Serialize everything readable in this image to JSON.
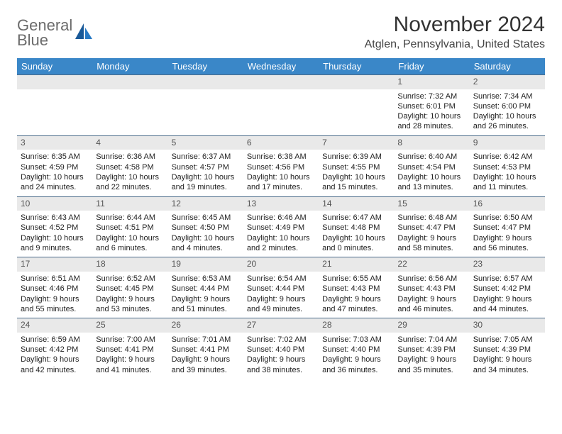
{
  "logo": {
    "line1": "General",
    "line2": "Blue",
    "gray_color": "#6b6b6b",
    "blue_color": "#2779c4",
    "icon_color": "#1a5a99"
  },
  "title": "November 2024",
  "location": "Atglen, Pennsylvania, United States",
  "header_bg": "#3a87c8",
  "header_fg": "#ffffff",
  "daynum_bg": "#e9e9e9",
  "cell_border": "#4a6b8a",
  "day_names": [
    "Sunday",
    "Monday",
    "Tuesday",
    "Wednesday",
    "Thursday",
    "Friday",
    "Saturday"
  ],
  "weeks": [
    [
      {
        "n": "",
        "lines": []
      },
      {
        "n": "",
        "lines": []
      },
      {
        "n": "",
        "lines": []
      },
      {
        "n": "",
        "lines": []
      },
      {
        "n": "",
        "lines": []
      },
      {
        "n": "1",
        "lines": [
          "Sunrise: 7:32 AM",
          "Sunset: 6:01 PM",
          "Daylight: 10 hours and 28 minutes."
        ]
      },
      {
        "n": "2",
        "lines": [
          "Sunrise: 7:34 AM",
          "Sunset: 6:00 PM",
          "Daylight: 10 hours and 26 minutes."
        ]
      }
    ],
    [
      {
        "n": "3",
        "lines": [
          "Sunrise: 6:35 AM",
          "Sunset: 4:59 PM",
          "Daylight: 10 hours and 24 minutes."
        ]
      },
      {
        "n": "4",
        "lines": [
          "Sunrise: 6:36 AM",
          "Sunset: 4:58 PM",
          "Daylight: 10 hours and 22 minutes."
        ]
      },
      {
        "n": "5",
        "lines": [
          "Sunrise: 6:37 AM",
          "Sunset: 4:57 PM",
          "Daylight: 10 hours and 19 minutes."
        ]
      },
      {
        "n": "6",
        "lines": [
          "Sunrise: 6:38 AM",
          "Sunset: 4:56 PM",
          "Daylight: 10 hours and 17 minutes."
        ]
      },
      {
        "n": "7",
        "lines": [
          "Sunrise: 6:39 AM",
          "Sunset: 4:55 PM",
          "Daylight: 10 hours and 15 minutes."
        ]
      },
      {
        "n": "8",
        "lines": [
          "Sunrise: 6:40 AM",
          "Sunset: 4:54 PM",
          "Daylight: 10 hours and 13 minutes."
        ]
      },
      {
        "n": "9",
        "lines": [
          "Sunrise: 6:42 AM",
          "Sunset: 4:53 PM",
          "Daylight: 10 hours and 11 minutes."
        ]
      }
    ],
    [
      {
        "n": "10",
        "lines": [
          "Sunrise: 6:43 AM",
          "Sunset: 4:52 PM",
          "Daylight: 10 hours and 9 minutes."
        ]
      },
      {
        "n": "11",
        "lines": [
          "Sunrise: 6:44 AM",
          "Sunset: 4:51 PM",
          "Daylight: 10 hours and 6 minutes."
        ]
      },
      {
        "n": "12",
        "lines": [
          "Sunrise: 6:45 AM",
          "Sunset: 4:50 PM",
          "Daylight: 10 hours and 4 minutes."
        ]
      },
      {
        "n": "13",
        "lines": [
          "Sunrise: 6:46 AM",
          "Sunset: 4:49 PM",
          "Daylight: 10 hours and 2 minutes."
        ]
      },
      {
        "n": "14",
        "lines": [
          "Sunrise: 6:47 AM",
          "Sunset: 4:48 PM",
          "Daylight: 10 hours and 0 minutes."
        ]
      },
      {
        "n": "15",
        "lines": [
          "Sunrise: 6:48 AM",
          "Sunset: 4:47 PM",
          "Daylight: 9 hours and 58 minutes."
        ]
      },
      {
        "n": "16",
        "lines": [
          "Sunrise: 6:50 AM",
          "Sunset: 4:47 PM",
          "Daylight: 9 hours and 56 minutes."
        ]
      }
    ],
    [
      {
        "n": "17",
        "lines": [
          "Sunrise: 6:51 AM",
          "Sunset: 4:46 PM",
          "Daylight: 9 hours and 55 minutes."
        ]
      },
      {
        "n": "18",
        "lines": [
          "Sunrise: 6:52 AM",
          "Sunset: 4:45 PM",
          "Daylight: 9 hours and 53 minutes."
        ]
      },
      {
        "n": "19",
        "lines": [
          "Sunrise: 6:53 AM",
          "Sunset: 4:44 PM",
          "Daylight: 9 hours and 51 minutes."
        ]
      },
      {
        "n": "20",
        "lines": [
          "Sunrise: 6:54 AM",
          "Sunset: 4:44 PM",
          "Daylight: 9 hours and 49 minutes."
        ]
      },
      {
        "n": "21",
        "lines": [
          "Sunrise: 6:55 AM",
          "Sunset: 4:43 PM",
          "Daylight: 9 hours and 47 minutes."
        ]
      },
      {
        "n": "22",
        "lines": [
          "Sunrise: 6:56 AM",
          "Sunset: 4:43 PM",
          "Daylight: 9 hours and 46 minutes."
        ]
      },
      {
        "n": "23",
        "lines": [
          "Sunrise: 6:57 AM",
          "Sunset: 4:42 PM",
          "Daylight: 9 hours and 44 minutes."
        ]
      }
    ],
    [
      {
        "n": "24",
        "lines": [
          "Sunrise: 6:59 AM",
          "Sunset: 4:42 PM",
          "Daylight: 9 hours and 42 minutes."
        ]
      },
      {
        "n": "25",
        "lines": [
          "Sunrise: 7:00 AM",
          "Sunset: 4:41 PM",
          "Daylight: 9 hours and 41 minutes."
        ]
      },
      {
        "n": "26",
        "lines": [
          "Sunrise: 7:01 AM",
          "Sunset: 4:41 PM",
          "Daylight: 9 hours and 39 minutes."
        ]
      },
      {
        "n": "27",
        "lines": [
          "Sunrise: 7:02 AM",
          "Sunset: 4:40 PM",
          "Daylight: 9 hours and 38 minutes."
        ]
      },
      {
        "n": "28",
        "lines": [
          "Sunrise: 7:03 AM",
          "Sunset: 4:40 PM",
          "Daylight: 9 hours and 36 minutes."
        ]
      },
      {
        "n": "29",
        "lines": [
          "Sunrise: 7:04 AM",
          "Sunset: 4:39 PM",
          "Daylight: 9 hours and 35 minutes."
        ]
      },
      {
        "n": "30",
        "lines": [
          "Sunrise: 7:05 AM",
          "Sunset: 4:39 PM",
          "Daylight: 9 hours and 34 minutes."
        ]
      }
    ]
  ]
}
